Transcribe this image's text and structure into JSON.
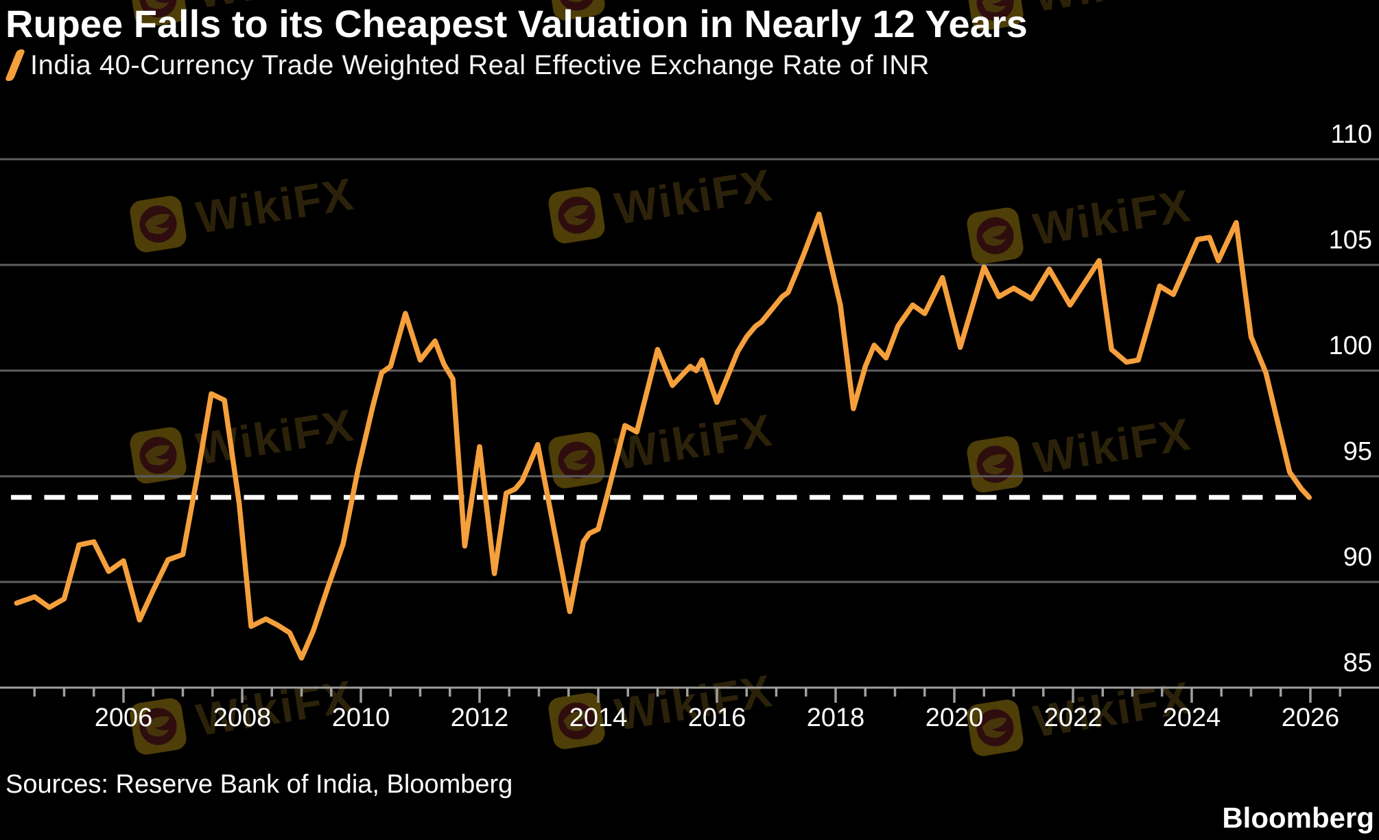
{
  "header": {
    "title": "Rupee Falls to its Cheapest Valuation in Nearly 12 Years",
    "legend": {
      "marker_icon": "orange-slash-icon",
      "label": "India 40-Currency Trade Weighted Real Effective Exchange Rate of INR"
    }
  },
  "footer": {
    "sources": "Sources: Reserve Bank of India, Bloomberg",
    "brand": "Bloomberg"
  },
  "watermark": {
    "text": "WikiFX",
    "icon": "wikifx-eagle-icon"
  },
  "colors": {
    "background": "#000000",
    "line": "#F5A03C",
    "grid": "#5F5F5F",
    "axis": "#9F9F9F",
    "text": "#FFFFFF",
    "reference_dash": "#FFFFFF"
  },
  "chart_data": {
    "type": "line",
    "title": "Rupee Falls to its Cheapest Valuation in Nearly 12 Years",
    "xlabel": "",
    "ylabel": "",
    "grid": "horizontal",
    "legend_position": "top-left",
    "y_axis": {
      "side": "right",
      "tick_labels": [
        110,
        105,
        100,
        95,
        90,
        85
      ],
      "range": [
        84,
        111.5
      ]
    },
    "x_axis": {
      "tick_labels": [
        "2006",
        "2008",
        "2010",
        "2012",
        "2014",
        "2016",
        "2018",
        "2020",
        "2022",
        "2024",
        "2026"
      ],
      "major_tick_years": [
        2006,
        2008,
        2010,
        2012,
        2014,
        2016,
        2018,
        2020,
        2022,
        2024,
        2026
      ],
      "minor_tick_interval_years": 0.5,
      "range": [
        2003.9,
        2027.2
      ]
    },
    "reference_line": {
      "value": 94.0,
      "style": "dashed",
      "color": "#FFFFFF"
    },
    "series": [
      {
        "name": "India 40-Currency Trade Weighted Real Effective Exchange Rate of INR",
        "color": "#F5A03C",
        "points": [
          [
            2004.2,
            89.0
          ],
          [
            2004.5,
            89.3
          ],
          [
            2004.75,
            88.8
          ],
          [
            2005.0,
            89.2
          ],
          [
            2005.25,
            91.75
          ],
          [
            2005.5,
            91.9
          ],
          [
            2005.75,
            90.5
          ],
          [
            2006.0,
            91.0
          ],
          [
            2006.27,
            88.2
          ],
          [
            2006.5,
            89.6
          ],
          [
            2006.75,
            91.05
          ],
          [
            2007.0,
            91.3
          ],
          [
            2007.25,
            95.1
          ],
          [
            2007.48,
            98.9
          ],
          [
            2007.7,
            98.6
          ],
          [
            2007.95,
            93.7
          ],
          [
            2008.15,
            87.9
          ],
          [
            2008.4,
            88.25
          ],
          [
            2008.6,
            87.95
          ],
          [
            2008.8,
            87.6
          ],
          [
            2009.0,
            86.4
          ],
          [
            2009.2,
            87.7
          ],
          [
            2009.45,
            89.8
          ],
          [
            2009.7,
            91.8
          ],
          [
            2009.95,
            95.3
          ],
          [
            2010.2,
            98.3
          ],
          [
            2010.35,
            99.9
          ],
          [
            2010.5,
            100.2
          ],
          [
            2010.75,
            102.7
          ],
          [
            2011.0,
            100.5
          ],
          [
            2011.25,
            101.4
          ],
          [
            2011.4,
            100.3
          ],
          [
            2011.55,
            99.6
          ],
          [
            2011.75,
            91.7
          ],
          [
            2012.0,
            96.4
          ],
          [
            2012.25,
            90.4
          ],
          [
            2012.45,
            94.2
          ],
          [
            2012.6,
            94.4
          ],
          [
            2012.72,
            94.8
          ],
          [
            2012.98,
            96.5
          ],
          [
            2013.52,
            88.6
          ],
          [
            2013.75,
            91.9
          ],
          [
            2013.85,
            92.3
          ],
          [
            2014.0,
            92.5
          ],
          [
            2014.15,
            94.1
          ],
          [
            2014.45,
            97.4
          ],
          [
            2014.65,
            97.1
          ],
          [
            2015.0,
            101.0
          ],
          [
            2015.25,
            99.3
          ],
          [
            2015.55,
            100.2
          ],
          [
            2015.65,
            100.0
          ],
          [
            2015.75,
            100.5
          ],
          [
            2016.0,
            98.5
          ],
          [
            2016.35,
            100.9
          ],
          [
            2016.5,
            101.6
          ],
          [
            2016.65,
            102.1
          ],
          [
            2016.75,
            102.3
          ],
          [
            2017.1,
            103.5
          ],
          [
            2017.2,
            103.7
          ],
          [
            2017.45,
            105.4
          ],
          [
            2017.72,
            107.4
          ],
          [
            2017.92,
            105.0
          ],
          [
            2018.08,
            103.1
          ],
          [
            2018.3,
            98.2
          ],
          [
            2018.5,
            100.2
          ],
          [
            2018.65,
            101.2
          ],
          [
            2018.85,
            100.6
          ],
          [
            2019.05,
            102.1
          ],
          [
            2019.3,
            103.1
          ],
          [
            2019.5,
            102.7
          ],
          [
            2019.8,
            104.4
          ],
          [
            2020.1,
            101.1
          ],
          [
            2020.5,
            104.9
          ],
          [
            2020.75,
            103.5
          ],
          [
            2021.0,
            103.9
          ],
          [
            2021.3,
            103.4
          ],
          [
            2021.6,
            104.8
          ],
          [
            2021.95,
            103.1
          ],
          [
            2022.44,
            105.2
          ],
          [
            2022.65,
            101.0
          ],
          [
            2022.9,
            100.4
          ],
          [
            2023.1,
            100.5
          ],
          [
            2023.46,
            104.0
          ],
          [
            2023.69,
            103.6
          ],
          [
            2024.1,
            106.2
          ],
          [
            2024.3,
            106.3
          ],
          [
            2024.45,
            105.2
          ],
          [
            2024.75,
            107.0
          ],
          [
            2025.0,
            101.6
          ],
          [
            2025.25,
            99.9
          ],
          [
            2025.65,
            95.2
          ],
          [
            2025.85,
            94.4
          ],
          [
            2025.98,
            94.0
          ]
        ]
      }
    ]
  }
}
